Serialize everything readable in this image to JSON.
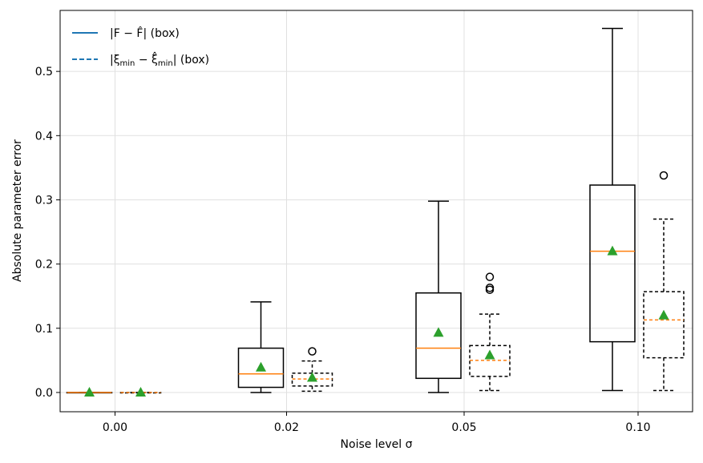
{
  "chart_data": {
    "type": "box",
    "title": "",
    "xlabel": "Noise level σ",
    "ylabel": "Absolute parameter error",
    "ylim": [
      -0.03,
      0.595
    ],
    "yticks": [
      0.0,
      0.1,
      0.2,
      0.3,
      0.4,
      0.5
    ],
    "ytick_labels": [
      "0.0",
      "0.1",
      "0.2",
      "0.3",
      "0.4",
      "0.5"
    ],
    "categories": [
      "0.00",
      "0.02",
      "0.05",
      "0.10"
    ],
    "grid": true,
    "legend_position": "top-left",
    "colors": {
      "box": "#000000",
      "median": "#ff7f0e",
      "mean": "#2ca02c",
      "legend_line": "#1f77b4",
      "grid": "#e0e0e0"
    },
    "series": [
      {
        "name": "|F − F̂| (box)",
        "line_style": "solid",
        "boxes": [
          {
            "whislo": 0.0,
            "q1": 0.0,
            "med": 0.0,
            "q3": 0.0,
            "whishi": 0.0,
            "mean": 0.0,
            "fliers": []
          },
          {
            "whislo": 0.0,
            "q1": 0.008,
            "med": 0.029,
            "q3": 0.069,
            "whishi": 0.141,
            "mean": 0.039,
            "fliers": []
          },
          {
            "whislo": 0.0,
            "q1": 0.022,
            "med": 0.069,
            "q3": 0.155,
            "whishi": 0.298,
            "mean": 0.093,
            "fliers": []
          },
          {
            "whislo": 0.003,
            "q1": 0.079,
            "med": 0.22,
            "q3": 0.323,
            "whishi": 0.567,
            "mean": 0.22,
            "fliers": []
          }
        ]
      },
      {
        "name": "|ξ_min − ξ̂_min| (box)",
        "line_style": "dashed",
        "boxes": [
          {
            "whislo": 0.0,
            "q1": 0.0,
            "med": 0.0,
            "q3": 0.0,
            "whishi": 0.0,
            "mean": 0.0,
            "fliers": []
          },
          {
            "whislo": 0.002,
            "q1": 0.01,
            "med": 0.021,
            "q3": 0.03,
            "whishi": 0.049,
            "mean": 0.023,
            "fliers": [
              0.064
            ]
          },
          {
            "whislo": 0.003,
            "q1": 0.025,
            "med": 0.05,
            "q3": 0.073,
            "whishi": 0.122,
            "mean": 0.058,
            "fliers": [
              0.16,
              0.163,
              0.18
            ]
          },
          {
            "whislo": 0.003,
            "q1": 0.054,
            "med": 0.113,
            "q3": 0.157,
            "whishi": 0.27,
            "mean": 0.12,
            "fliers": [
              0.338
            ]
          }
        ]
      }
    ]
  },
  "legend": {
    "items": [
      {
        "label_main": "|F − F̂| (box)"
      },
      {
        "label_main": "|ξ",
        "label_sub": "min",
        "label_mid": " − ξ̂",
        "label_sub2": "min",
        "label_end": "| (box)"
      }
    ]
  }
}
